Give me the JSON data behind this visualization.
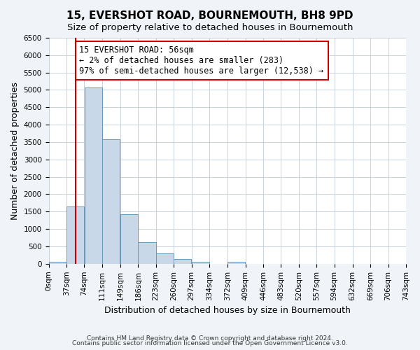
{
  "title": "15, EVERSHOT ROAD, BOURNEMOUTH, BH8 9PD",
  "subtitle": "Size of property relative to detached houses in Bournemouth",
  "xlabel": "Distribution of detached houses by size in Bournemouth",
  "ylabel": "Number of detached properties",
  "bar_labels": [
    "0sqm",
    "37sqm",
    "74sqm",
    "111sqm",
    "149sqm",
    "186sqm",
    "223sqm",
    "260sqm",
    "297sqm",
    "334sqm",
    "372sqm",
    "409sqm",
    "446sqm",
    "483sqm",
    "520sqm",
    "557sqm",
    "594sqm",
    "632sqm",
    "669sqm",
    "706sqm",
    "743sqm"
  ],
  "bar_values": [
    50,
    1650,
    5070,
    3580,
    1420,
    620,
    300,
    145,
    50,
    0,
    50,
    0,
    0,
    0,
    0,
    0,
    0,
    0,
    0,
    0,
    0
  ],
  "bar_color": "#c8d8e8",
  "bar_edge_color": "#6699bb",
  "property_line_x": 56,
  "bin_edges": [
    0,
    37,
    74,
    111,
    149,
    186,
    223,
    260,
    297,
    334,
    372,
    409,
    446,
    483,
    520,
    557,
    594,
    632,
    669,
    706,
    743
  ],
  "ylim": [
    0,
    6500
  ],
  "yticks": [
    0,
    500,
    1000,
    1500,
    2000,
    2500,
    3000,
    3500,
    4000,
    4500,
    5000,
    5500,
    6000,
    6500
  ],
  "annotation_text": "15 EVERSHOT ROAD: 56sqm\n← 2% of detached houses are smaller (283)\n97% of semi-detached houses are larger (12,538) →",
  "annotation_box_color": "#ffffff",
  "annotation_box_edge_color": "#cc0000",
  "property_line_color": "#cc0000",
  "footer_line1": "Contains HM Land Registry data © Crown copyright and database right 2024.",
  "footer_line2": "Contains public sector information licensed under the Open Government Licence v3.0.",
  "bg_color": "#f0f4f8",
  "plot_bg_color": "#ffffff",
  "title_fontsize": 11,
  "subtitle_fontsize": 9.5,
  "axis_label_fontsize": 9,
  "tick_fontsize": 7.5,
  "annotation_fontsize": 8.5,
  "footer_fontsize": 6.5
}
